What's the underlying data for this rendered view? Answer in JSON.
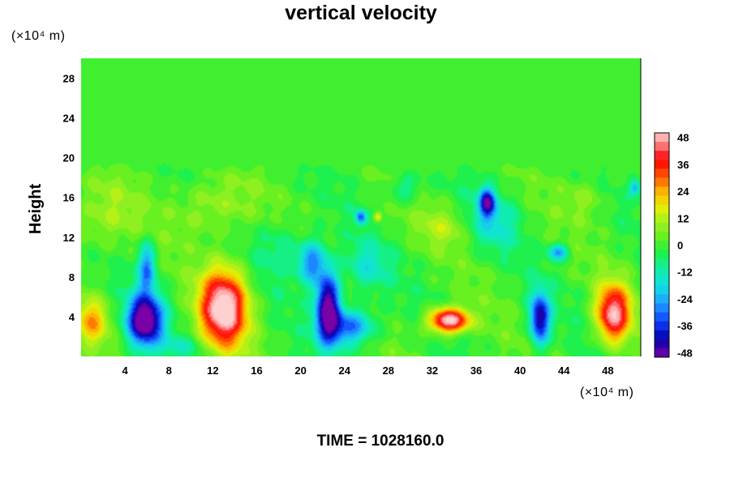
{
  "chart_data": {
    "type": "heatmap",
    "title": "vertical velocity",
    "ylabel": "Height",
    "x_unit_label": "(×10⁴ m)",
    "y_unit_label": "(×10⁴ m)",
    "footer": "TIME = 1028160.0",
    "xlim": [
      0,
      51
    ],
    "ylim": [
      0,
      30
    ],
    "x_ticks": [
      4,
      8,
      12,
      16,
      20,
      24,
      28,
      32,
      36,
      40,
      44,
      48
    ],
    "y_ticks": [
      4,
      8,
      12,
      16,
      20,
      24,
      28
    ],
    "colorbar": {
      "range": [
        -50,
        50
      ],
      "ticks": [
        48,
        36,
        24,
        12,
        0,
        -12,
        -24,
        -36,
        -48
      ],
      "stops": [
        {
          "value": -50,
          "color": "#7a00a8"
        },
        {
          "value": -42,
          "color": "#0000aa"
        },
        {
          "value": -34,
          "color": "#1040ff"
        },
        {
          "value": -26,
          "color": "#20a0ff"
        },
        {
          "value": -18,
          "color": "#10e0e0"
        },
        {
          "value": -10,
          "color": "#10f0a0"
        },
        {
          "value": -3,
          "color": "#20f040"
        },
        {
          "value": 3,
          "color": "#60f020"
        },
        {
          "value": 10,
          "color": "#a0f020"
        },
        {
          "value": 17,
          "color": "#e8f000"
        },
        {
          "value": 24,
          "color": "#ffb000"
        },
        {
          "value": 31,
          "color": "#ff5000"
        },
        {
          "value": 38,
          "color": "#ff0000"
        },
        {
          "value": 44,
          "color": "#ff7070"
        },
        {
          "value": 50,
          "color": "#ffd0d0"
        }
      ]
    },
    "features": [
      {
        "x": 1.0,
        "y": 3.5,
        "sx": 1.4,
        "sy": 2.2,
        "amp": 22
      },
      {
        "x": 5.8,
        "y": 3.6,
        "sx": 1.6,
        "sy": 2.6,
        "amp": -58
      },
      {
        "x": 6.0,
        "y": 9.0,
        "sx": 0.8,
        "sy": 2.5,
        "amp": -28
      },
      {
        "x": 13.0,
        "y": 4.8,
        "sx": 2.1,
        "sy": 3.8,
        "amp": 56
      },
      {
        "x": 22.5,
        "y": 5.0,
        "sx": 1.1,
        "sy": 3.5,
        "amp": -55
      },
      {
        "x": 24.5,
        "y": 3.0,
        "sx": 2.2,
        "sy": 1.8,
        "amp": -32
      },
      {
        "x": 21.0,
        "y": 9.5,
        "sx": 1.3,
        "sy": 2.2,
        "amp": -30
      },
      {
        "x": 26.0,
        "y": 9.0,
        "sx": 2.0,
        "sy": 2.5,
        "amp": -14
      },
      {
        "x": 33.5,
        "y": 3.6,
        "sx": 1.8,
        "sy": 1.2,
        "amp": 55
      },
      {
        "x": 41.8,
        "y": 3.8,
        "sx": 0.9,
        "sy": 2.6,
        "amp": -46
      },
      {
        "x": 48.5,
        "y": 4.3,
        "sx": 1.5,
        "sy": 2.8,
        "amp": 48
      },
      {
        "x": 37.0,
        "y": 15.5,
        "sx": 0.7,
        "sy": 1.4,
        "amp": -40
      },
      {
        "x": 37.5,
        "y": 13.5,
        "sx": 2.3,
        "sy": 2.8,
        "amp": -14
      },
      {
        "x": 43.5,
        "y": 10.5,
        "sx": 0.9,
        "sy": 0.8,
        "amp": -26
      },
      {
        "x": 25.5,
        "y": 14.0,
        "sx": 0.5,
        "sy": 0.7,
        "amp": -30
      },
      {
        "x": 27.0,
        "y": 14.0,
        "sx": 0.4,
        "sy": 0.5,
        "amp": 22
      },
      {
        "x": 50.5,
        "y": 17.0,
        "sx": 0.5,
        "sy": 0.8,
        "amp": -24
      },
      {
        "x": 2.0,
        "y": 14.0,
        "sx": 3.0,
        "sy": 3.5,
        "amp": 10
      },
      {
        "x": 12.0,
        "y": 15.0,
        "sx": 3.5,
        "sy": 3.0,
        "amp": 11
      },
      {
        "x": 33.0,
        "y": 13.0,
        "sx": 2.5,
        "sy": 2.0,
        "amp": 9
      },
      {
        "x": 18.0,
        "y": 11.0,
        "sx": 2.0,
        "sy": 3.0,
        "amp": -9
      },
      {
        "x": 29.5,
        "y": 17.0,
        "sx": 1.5,
        "sy": 1.5,
        "amp": -12
      },
      {
        "x": 46.0,
        "y": 16.0,
        "sx": 2.0,
        "sy": 2.0,
        "amp": 8
      },
      {
        "x": 9.0,
        "y": 1.0,
        "sx": 2.0,
        "sy": 1.0,
        "amp": -10
      }
    ]
  }
}
